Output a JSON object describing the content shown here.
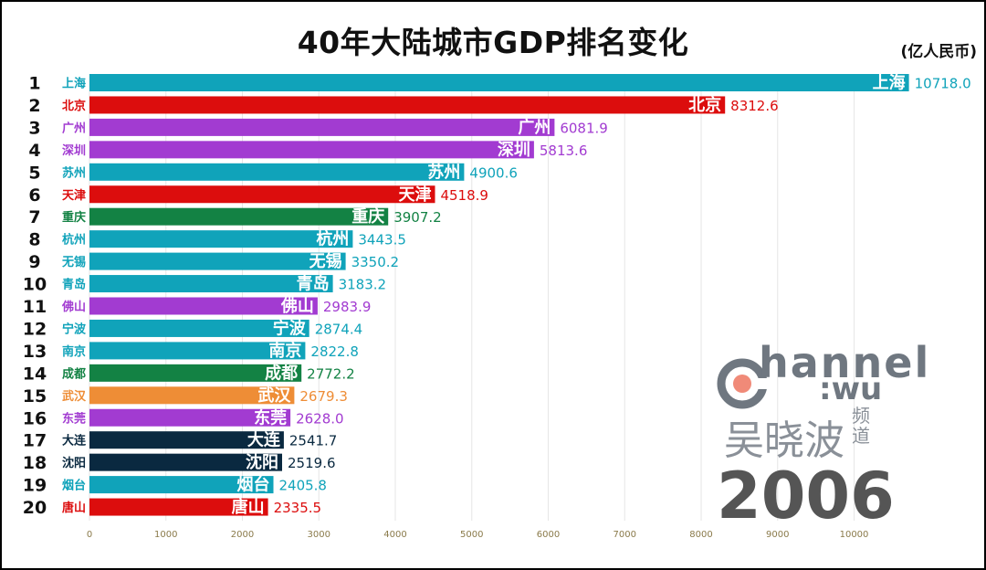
{
  "header": {
    "title": "40年大陆城市GDP排名变化",
    "unit": "(亿人民币)"
  },
  "watermark": {
    "brand": "hannel",
    "brand_sub": ":wu",
    "name": "吴晓波",
    "name_sub": "频道",
    "year": "2006"
  },
  "chart_data": {
    "type": "bar",
    "orientation": "horizontal",
    "title": "40年大陆城市GDP排名变化",
    "unit": "(亿人民币)",
    "xlim": [
      0,
      11000
    ],
    "x_ticks": [
      0,
      1000,
      2000,
      3000,
      4000,
      5000,
      6000,
      7000,
      8000,
      9000,
      10000
    ],
    "grid": true,
    "colors": {
      "teal": "#10a3ba",
      "red": "#dc0d0d",
      "purple": "#a23bd1",
      "green": "#138244",
      "orange": "#ee8d36",
      "navy": "#0a2940"
    },
    "bars": [
      {
        "rank": "1",
        "city": "上海",
        "value": 10718.0,
        "label": "10718.0",
        "color": "teal"
      },
      {
        "rank": "2",
        "city": "北京",
        "value": 8312.6,
        "label": "8312.6",
        "color": "red"
      },
      {
        "rank": "3",
        "city": "广州",
        "value": 6081.9,
        "label": "6081.9",
        "color": "purple"
      },
      {
        "rank": "4",
        "city": "深圳",
        "value": 5813.6,
        "label": "5813.6",
        "color": "purple"
      },
      {
        "rank": "5",
        "city": "苏州",
        "value": 4900.6,
        "label": "4900.6",
        "color": "teal"
      },
      {
        "rank": "6",
        "city": "天津",
        "value": 4518.9,
        "label": "4518.9",
        "color": "red"
      },
      {
        "rank": "7",
        "city": "重庆",
        "value": 3907.2,
        "label": "3907.2",
        "color": "green"
      },
      {
        "rank": "8",
        "city": "杭州",
        "value": 3443.5,
        "label": "3443.5",
        "color": "teal"
      },
      {
        "rank": "9",
        "city": "无锡",
        "value": 3350.2,
        "label": "3350.2",
        "color": "teal"
      },
      {
        "rank": "10",
        "city": "青岛",
        "value": 3183.2,
        "label": "3183.2",
        "color": "teal"
      },
      {
        "rank": "11",
        "city": "佛山",
        "value": 2983.9,
        "label": "2983.9",
        "color": "purple"
      },
      {
        "rank": "12",
        "city": "宁波",
        "value": 2874.4,
        "label": "2874.4",
        "color": "teal"
      },
      {
        "rank": "13",
        "city": "南京",
        "value": 2822.8,
        "label": "2822.8",
        "color": "teal"
      },
      {
        "rank": "14",
        "city": "成都",
        "value": 2772.2,
        "label": "2772.2",
        "color": "green"
      },
      {
        "rank": "15",
        "city": "武汉",
        "value": 2679.3,
        "label": "2679.3",
        "color": "orange"
      },
      {
        "rank": "16",
        "city": "东莞",
        "value": 2628.0,
        "label": "2628.0",
        "color": "purple"
      },
      {
        "rank": "17",
        "city": "大连",
        "value": 2541.7,
        "label": "2541.7",
        "color": "navy"
      },
      {
        "rank": "18",
        "city": "沈阳",
        "value": 2519.6,
        "label": "2519.6",
        "color": "navy"
      },
      {
        "rank": "19",
        "city": "烟台",
        "value": 2405.8,
        "label": "2405.8",
        "color": "teal"
      },
      {
        "rank": "20",
        "city": "唐山",
        "value": 2335.5,
        "label": "2335.5",
        "color": "red"
      }
    ]
  }
}
